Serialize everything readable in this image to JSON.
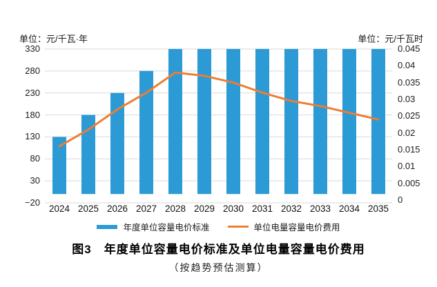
{
  "page": {
    "background": "#ffffff"
  },
  "chart": {
    "left_axis": {
      "unit_label": "单位：元/千瓦·年",
      "ticks": [
        "330",
        "280",
        "230",
        "180",
        "130",
        "80",
        "30",
        "−20"
      ]
    },
    "right_axis": {
      "unit_label": "单位：元/千瓦时",
      "ticks": [
        "0.045",
        "0.04",
        "0.035",
        "0.03",
        "0.025",
        "0.02",
        "0.015",
        "0.01",
        "0.005",
        "0"
      ]
    },
    "x_axis": {
      "labels": [
        "2024",
        "2025",
        "2026",
        "2027",
        "2028",
        "2029",
        "2030",
        "2031",
        "2032",
        "2033",
        "2034",
        "2035"
      ]
    },
    "colors": {
      "bar": "#2B9AD5",
      "line": "#EE7D33",
      "gridline": "#D9D9D9",
      "text": "#1a1a1a"
    }
  },
  "chart_data": {
    "type": "bar",
    "subtype": "bar+line combo, dual y-axes",
    "categories": [
      "2024",
      "2025",
      "2026",
      "2027",
      "2028",
      "2029",
      "2030",
      "2031",
      "2032",
      "2033",
      "2034",
      "2035"
    ],
    "series": [
      {
        "name": "年度单位容量电价标准",
        "type": "bar",
        "axis": "left",
        "color": "#2B9AD5",
        "values": [
          130,
          180,
          230,
          280,
          330,
          330,
          330,
          330,
          330,
          330,
          330,
          330
        ]
      },
      {
        "name": "单位电量容量电价费用",
        "type": "line",
        "axis": "right",
        "color": "#EE7D33",
        "values": [
          0.016,
          0.021,
          0.027,
          0.032,
          0.038,
          0.037,
          0.035,
          0.032,
          0.0295,
          0.028,
          0.026,
          0.024
        ]
      }
    ],
    "title": "图3　年度单位容量电价标准及单位电量容量电价费用",
    "note": "（按趋势预估测算）",
    "left_axis_label": "单位：元/千瓦·年",
    "right_axis_label": "单位：元/千瓦时",
    "left_ylim": [
      -20,
      330
    ],
    "right_ylim": [
      0,
      0.045
    ],
    "grid": true,
    "legend_position": "bottom"
  },
  "legend": {
    "items": [
      {
        "label": "年度单位容量电价标准",
        "swatch": "bar",
        "color": "#2B9AD5"
      },
      {
        "label": "单位电量容量电价费用",
        "swatch": "line",
        "color": "#EE7D33"
      }
    ]
  },
  "caption": {
    "title": "图3　年度单位容量电价标准及单位电量容量电价费用",
    "note": "（按趋势预估测算）"
  }
}
